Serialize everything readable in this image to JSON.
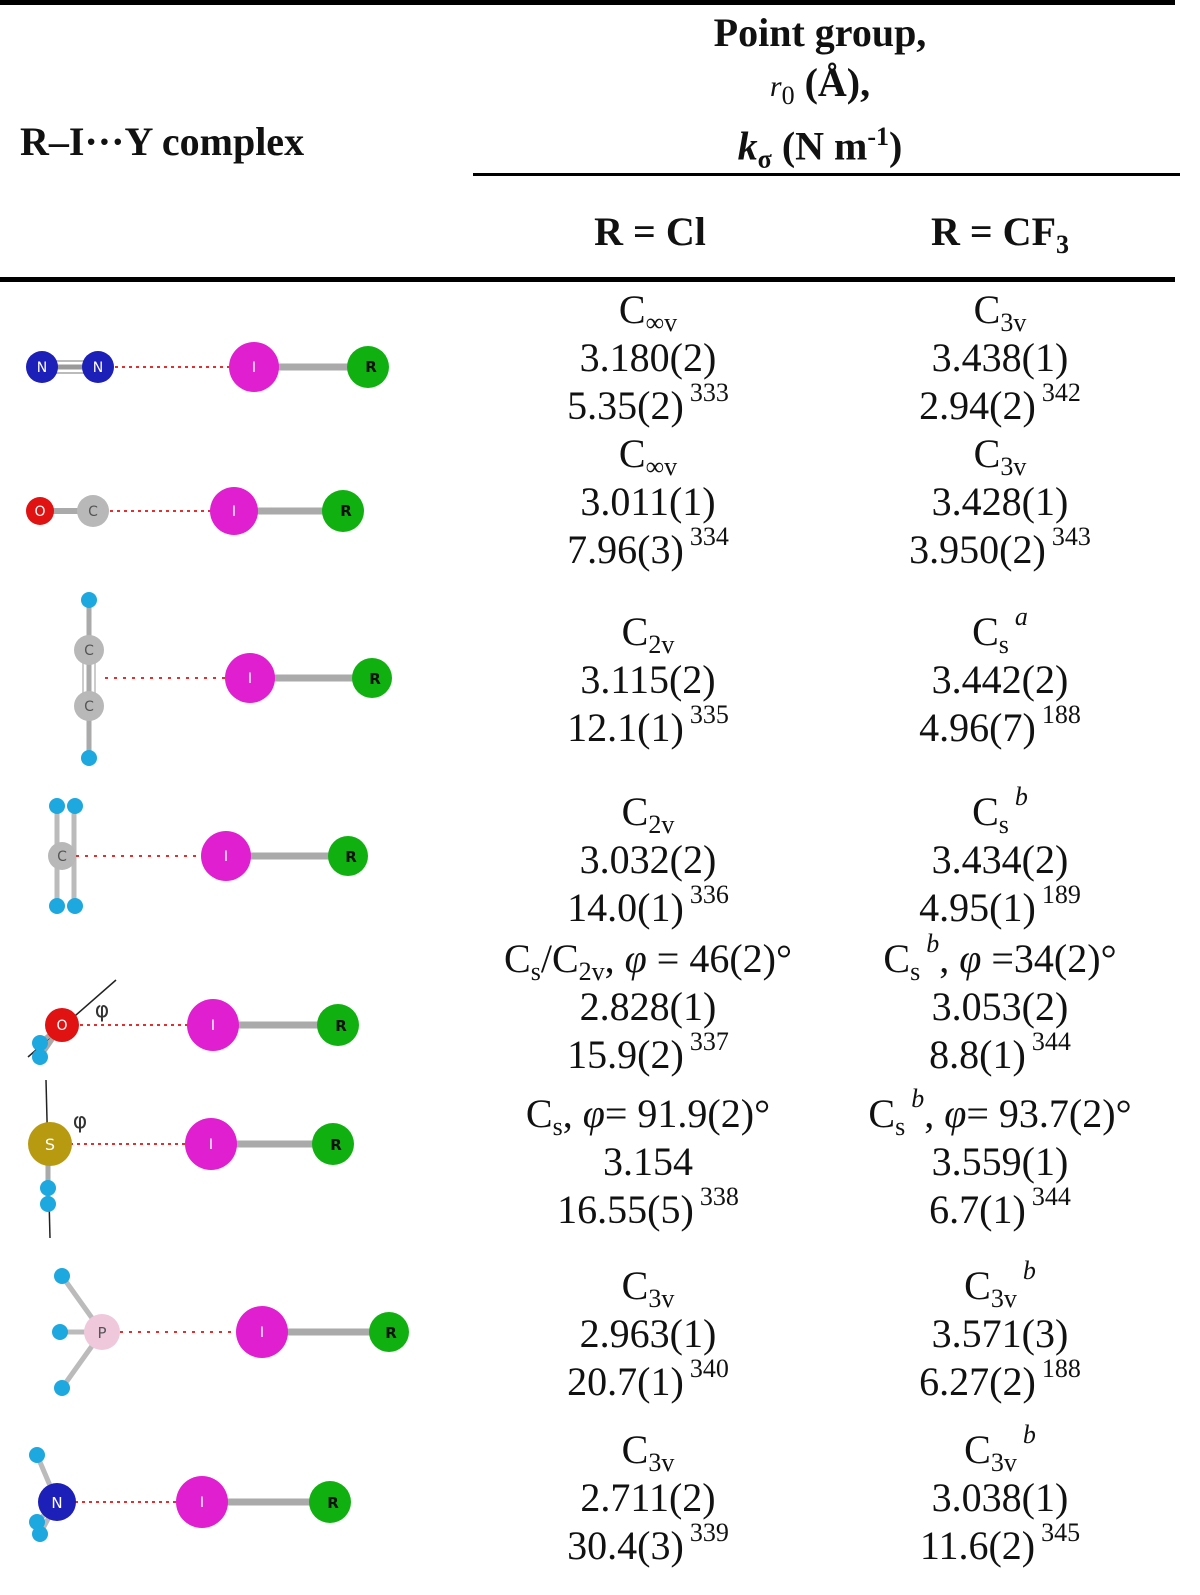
{
  "header": {
    "col0": "R–I···Y complex",
    "title_line1": "Point group,",
    "title_line2_sym": "r",
    "title_line2_sub": "0",
    "title_line2_rest": " (Å),",
    "title_line3_sym": "k",
    "title_line3_sub": "σ",
    "title_line3_rest": " (N m",
    "title_line3_sup": "-1",
    "title_line3_end": ")",
    "col1": "R = Cl",
    "col2_main": "R = CF",
    "col2_sub": "3"
  },
  "rows": [
    {
      "molecule": [
        "N",
        "N",
        "I",
        "R"
      ],
      "cl": {
        "pg": "C",
        "pg_sub": "∞v",
        "r0": "3.180(2)",
        "k": "5.35(2)",
        "ref": "333"
      },
      "cf3": {
        "pg": "C",
        "pg_sub": "3v",
        "r0": "3.438(1)",
        "k": "2.94(2)",
        "ref": "342"
      }
    },
    {
      "molecule": [
        "O",
        "C",
        "I",
        "R"
      ],
      "cl": {
        "pg": "C",
        "pg_sub": "∞v",
        "r0": "3.011(1)",
        "k": "7.96(3)",
        "ref": "334"
      },
      "cf3": {
        "pg": "C",
        "pg_sub": "3v",
        "r0": "3.428(1)",
        "k": "3.950(2)",
        "ref": "343"
      }
    },
    {
      "molecule": [
        "C",
        "C",
        "I",
        "R"
      ],
      "cl": {
        "pg": "C",
        "pg_sub": "2v",
        "r0": "3.115(2)",
        "k": "12.1(1)",
        "ref": "335"
      },
      "cf3": {
        "pg": "C",
        "pg_sub": "s",
        "pg_note": "a",
        "r0": "3.442(2)",
        "k": "4.96(7)",
        "ref": "188"
      }
    },
    {
      "molecule": [
        "C",
        "I",
        "R"
      ],
      "cl": {
        "pg": "C",
        "pg_sub": "2v",
        "r0": "3.032(2)",
        "k": "14.0(1)",
        "ref": "336"
      },
      "cf3": {
        "pg": "C",
        "pg_sub": "s",
        "pg_note": "b",
        "r0": "3.434(2)",
        "k": "4.95(1)",
        "ref": "189"
      }
    },
    {
      "molecule": [
        "O",
        "φ",
        "I",
        "R"
      ],
      "cl": {
        "pg_text": "C",
        "pg_sub1": "s",
        "pg_mid": "/C",
        "pg_sub2": "2v",
        "pg_tail": ", φ = 46(2)°",
        "r0": "2.828(1)",
        "k": "15.9(2)",
        "ref": "337"
      },
      "cf3": {
        "pg": "C",
        "pg_sub": "s",
        "pg_note": "b",
        "pg_tail": ", φ =34(2)°",
        "r0": "3.053(2)",
        "k": "8.8(1)",
        "ref": "344"
      }
    },
    {
      "molecule": [
        "S",
        "φ",
        "I",
        "R"
      ],
      "cl": {
        "pg": "C",
        "pg_sub": "s",
        "pg_tail": ", φ= 91.9(2)°",
        "r0": "3.154",
        "k": "16.55(5)",
        "ref": "338"
      },
      "cf3": {
        "pg": "C",
        "pg_sub": "s",
        "pg_note": "b",
        "pg_tail": ", φ= 93.7(2)°",
        "r0": "3.559(1)",
        "k": "6.7(1)",
        "ref": "344"
      }
    },
    {
      "molecule": [
        "P",
        "I",
        "R"
      ],
      "cl": {
        "pg": "C",
        "pg_sub": "3v",
        "r0": "2.963(1)",
        "k": "20.7(1)",
        "ref": "340"
      },
      "cf3": {
        "pg": "C",
        "pg_sub": "3v",
        "pg_note": "b",
        "r0": "3.571(3)",
        "k": "6.27(2)",
        "ref": "188"
      }
    },
    {
      "molecule": [
        "N",
        "I",
        "R"
      ],
      "cl": {
        "pg": "C",
        "pg_sub": "3v",
        "r0": "2.711(2)",
        "k": "30.4(3)",
        "ref": "339"
      },
      "cf3": {
        "pg": "C",
        "pg_sub": "3v",
        "pg_note": "b",
        "r0": "3.038(1)",
        "k": "11.6(2)",
        "ref": "345"
      }
    }
  ],
  "colors": {
    "nitrogen": "#1c1fb8",
    "oxygen": "#e01212",
    "carbon": "#b8b8b8",
    "iodine": "#e020d0",
    "r_group": "#10b010",
    "hydrogen": "#1ea8e0",
    "sulfur": "#b89a10",
    "phosphorus": "#efc8dc",
    "contact": "#e03030"
  }
}
